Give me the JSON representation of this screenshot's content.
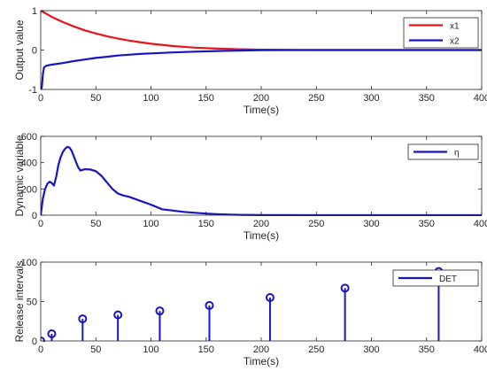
{
  "colors": {
    "red": "#e8141a",
    "blue": "#1616c8",
    "axis": "#262626"
  },
  "chart_data": [
    {
      "type": "line",
      "xlabel": "Time(s)",
      "ylabel": "Output value",
      "xlim": [
        0,
        400
      ],
      "ylim": [
        -1,
        1
      ],
      "xticks": [
        0,
        50,
        100,
        150,
        200,
        250,
        300,
        350,
        400
      ],
      "yticks": [
        -1,
        0,
        1
      ],
      "legend_position": "top-right",
      "series": [
        {
          "name": "x1",
          "color": "red",
          "x": [
            0,
            10,
            20,
            30,
            40,
            50,
            60,
            70,
            80,
            90,
            100,
            120,
            140,
            160,
            180,
            200,
            250,
            300,
            350,
            400
          ],
          "y": [
            1.0,
            0.84,
            0.71,
            0.6,
            0.5,
            0.42,
            0.35,
            0.29,
            0.24,
            0.2,
            0.16,
            0.1,
            0.06,
            0.035,
            0.02,
            0.01,
            0.0,
            0.0,
            0.0,
            0.0
          ]
        },
        {
          "name": "x2",
          "color": "blue",
          "x": [
            0,
            1,
            2,
            3,
            5,
            8,
            10,
            20,
            30,
            40,
            50,
            60,
            70,
            80,
            90,
            100,
            120,
            140,
            160,
            180,
            200,
            250,
            300,
            350,
            400
          ],
          "y": [
            -1.0,
            -0.95,
            -0.6,
            -0.44,
            -0.4,
            -0.38,
            -0.37,
            -0.33,
            -0.28,
            -0.24,
            -0.2,
            -0.17,
            -0.14,
            -0.12,
            -0.1,
            -0.085,
            -0.06,
            -0.04,
            -0.025,
            -0.015,
            -0.005,
            0.0,
            0.0,
            0.0,
            0.0
          ]
        }
      ]
    },
    {
      "type": "line",
      "xlabel": "Time(s)",
      "ylabel": "Dynamic variable",
      "xlim": [
        0,
        400
      ],
      "ylim": [
        0,
        600
      ],
      "xticks": [
        0,
        50,
        100,
        150,
        200,
        250,
        300,
        350,
        400
      ],
      "yticks": [
        0,
        200,
        400,
        600
      ],
      "legend_position": "top-right",
      "series": [
        {
          "name": "η",
          "color": "blue",
          "x": [
            0,
            2,
            4,
            6,
            8,
            10,
            12,
            14,
            16,
            18,
            20,
            22,
            24,
            26,
            28,
            30,
            32,
            34,
            36,
            38,
            40,
            45,
            50,
            55,
            60,
            65,
            70,
            75,
            80,
            90,
            100,
            110,
            120,
            130,
            140,
            150,
            160,
            170,
            180,
            200,
            250,
            300,
            350,
            400
          ],
          "y": [
            0,
            130,
            200,
            240,
            255,
            245,
            225,
            290,
            380,
            440,
            480,
            505,
            520,
            515,
            490,
            450,
            405,
            365,
            340,
            345,
            350,
            348,
            335,
            300,
            250,
            200,
            165,
            150,
            140,
            110,
            80,
            45,
            35,
            25,
            18,
            12,
            8,
            5,
            3,
            1,
            0,
            0,
            0,
            0
          ]
        }
      ]
    },
    {
      "type": "stem",
      "xlabel": "Time(s)",
      "ylabel": "Release intervals",
      "xlim": [
        0,
        400
      ],
      "ylim": [
        0,
        100
      ],
      "xticks": [
        0,
        50,
        100,
        150,
        200,
        250,
        300,
        350,
        400
      ],
      "yticks": [
        0,
        50,
        100
      ],
      "legend_position": "top-right",
      "series": [
        {
          "name": "DET",
          "color": "blue",
          "x": [
            0,
            10,
            38,
            70,
            108,
            153,
            208,
            276,
            361
          ],
          "y": [
            0,
            9,
            28,
            33,
            38,
            45,
            55,
            67,
            88
          ]
        }
      ]
    }
  ]
}
